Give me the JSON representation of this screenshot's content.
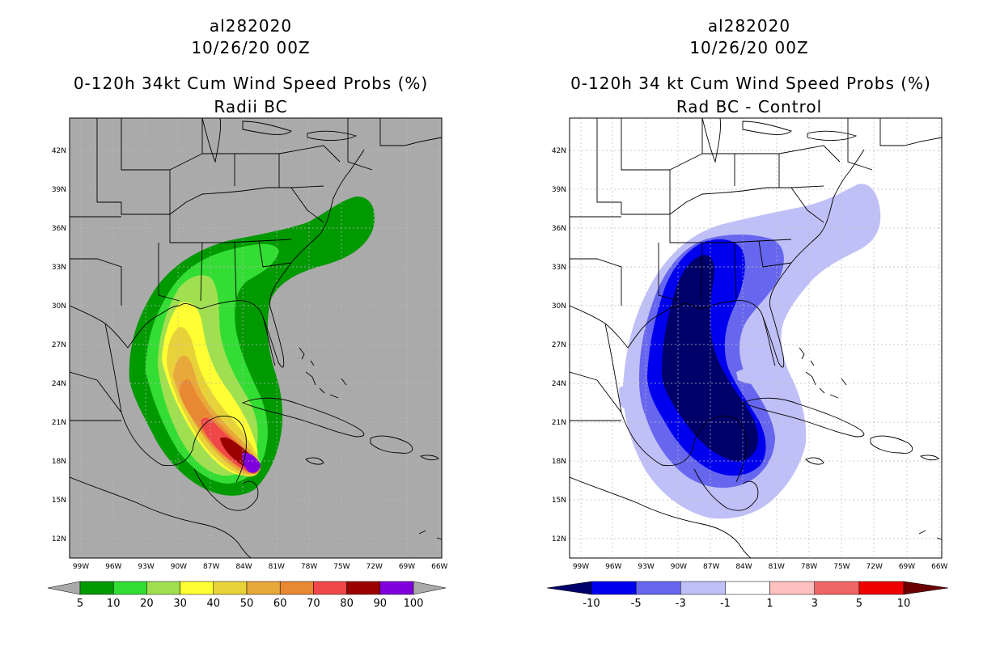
{
  "left": {
    "storm_id": "al282020",
    "date": "10/26/20 00Z",
    "title": "0-120h 34kt Cum Wind Speed Probs (%)",
    "subtitle": "Radii BC",
    "colorbar": {
      "labels": [
        "5",
        "10",
        "20",
        "30",
        "40",
        "50",
        "60",
        "70",
        "80",
        "90",
        "100"
      ],
      "colors": [
        "#009900",
        "#33dd33",
        "#a0e050",
        "#ffff33",
        "#e8d23a",
        "#e8a83a",
        "#e88833",
        "#f04848",
        "#9a0000",
        "#8000dd"
      ],
      "under_color": "#aaaaaa",
      "over_color": "#aaaaaa"
    }
  },
  "right": {
    "storm_id": "al282020",
    "date": "10/26/20 00Z",
    "title": "0-120h 34 kt Cum Wind Speed Probs (%)",
    "subtitle": "Rad BC - Control",
    "colorbar": {
      "labels": [
        "-10",
        "-5",
        "-3",
        "-1",
        "1",
        "3",
        "5",
        "10"
      ],
      "colors": [
        "#0000ee",
        "#6666ee",
        "#c0c0f8",
        "#ffffff",
        "#ffc0c0",
        "#f06666",
        "#ee0000"
      ],
      "under_color": "#00006a",
      "over_color": "#6a0000"
    }
  },
  "axes": {
    "lon_labels": [
      "99W",
      "96W",
      "93W",
      "90W",
      "87W",
      "84W",
      "81W",
      "78W",
      "75W",
      "72W",
      "69W",
      "66W"
    ],
    "lat_labels": [
      "42N",
      "39N",
      "36N",
      "33N",
      "30N",
      "27N",
      "24N",
      "21N",
      "18N",
      "15N",
      "12N"
    ]
  },
  "colors": {
    "land_line": "#000000",
    "left_background": "#aaaaaa",
    "right_background": "#ffffff",
    "grid": "#bbbbbb"
  }
}
